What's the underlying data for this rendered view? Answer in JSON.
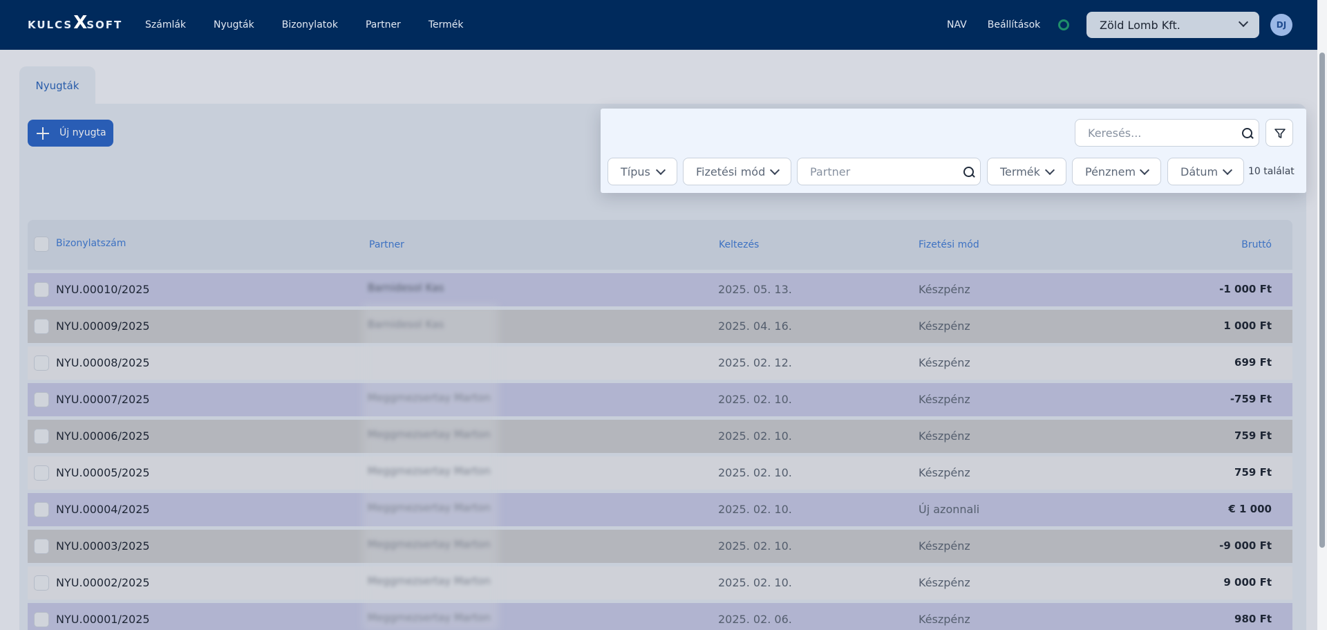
{
  "header": {
    "logo_left": "KULCS",
    "logo_x": "X",
    "logo_right": "SOFT",
    "nav": [
      "Számlák",
      "Nyugták",
      "Bizonylatok",
      "Partner",
      "Termék"
    ],
    "right_nav": [
      "NAV",
      "Beállítások"
    ],
    "company": "Zöld Lomb Kft.",
    "avatar": "DJ"
  },
  "tab": {
    "label": "Nyugták"
  },
  "toolbar": {
    "new_label": "Új nyugta"
  },
  "filters": {
    "search_placeholder": "Keresés...",
    "type": "Típus",
    "payment": "Fizetési mód",
    "partner_placeholder": "Partner",
    "product": "Termék",
    "currency": "Pénznem",
    "date": "Dátum",
    "count": "10 találat"
  },
  "table": {
    "headers": {
      "number": "Bizonylatszám",
      "partner": "Partner",
      "date": "Keltezés",
      "payment": "Fizetési mód",
      "gross": "Bruttó"
    },
    "rows": [
      {
        "number": "NYU.00010/2025",
        "partner": "Barnidesol Kas",
        "date": "2025. 05. 13.",
        "payment": "Készpénz",
        "gross": "-1 000 Ft"
      },
      {
        "number": "NYU.00009/2025",
        "partner": "Barnidesol Kas",
        "date": "2025. 04. 16.",
        "payment": "Készpénz",
        "gross": "1 000 Ft"
      },
      {
        "number": "NYU.00008/2025",
        "partner": "",
        "date": "2025. 02. 12.",
        "payment": "Készpénz",
        "gross": "699 Ft"
      },
      {
        "number": "NYU.00007/2025",
        "partner": "Meggmezsertay Marton",
        "date": "2025. 02. 10.",
        "payment": "Készpénz",
        "gross": "-759 Ft"
      },
      {
        "number": "NYU.00006/2025",
        "partner": "Meggmezsertay Marton",
        "date": "2025. 02. 10.",
        "payment": "Készpénz",
        "gross": "759 Ft"
      },
      {
        "number": "NYU.00005/2025",
        "partner": "Meggmezsertay Marton",
        "date": "2025. 02. 10.",
        "payment": "Készpénz",
        "gross": "759 Ft"
      },
      {
        "number": "NYU.00004/2025",
        "partner": "Meggmezsertay Marton",
        "date": "2025. 02. 10.",
        "payment": "Új azonnali",
        "gross": "€ 1 000"
      },
      {
        "number": "NYU.00003/2025",
        "partner": "Meggmezsertay Marton",
        "date": "2025. 02. 10.",
        "payment": "Készpénz",
        "gross": "-9 000 Ft"
      },
      {
        "number": "NYU.00002/2025",
        "partner": "Meggmezsertay Marton",
        "date": "2025. 02. 10.",
        "payment": "Készpénz",
        "gross": "9 000 Ft"
      },
      {
        "number": "NYU.00001/2025",
        "partner": "Meggmezsertay Marton",
        "date": "2025. 02. 06.",
        "payment": "Készpénz",
        "gross": "980 Ft"
      }
    ]
  },
  "colors": {
    "nav_bg": "#002a5c",
    "accent": "#2a63c4",
    "row_highlight": "#c4c7e3",
    "row_grey": "#c8c9cc",
    "row_plain": "#e6e8ec"
  },
  "icons": [
    "search-icon",
    "filter-icon",
    "chevron-down-icon",
    "plus-icon",
    "gear-icon"
  ]
}
